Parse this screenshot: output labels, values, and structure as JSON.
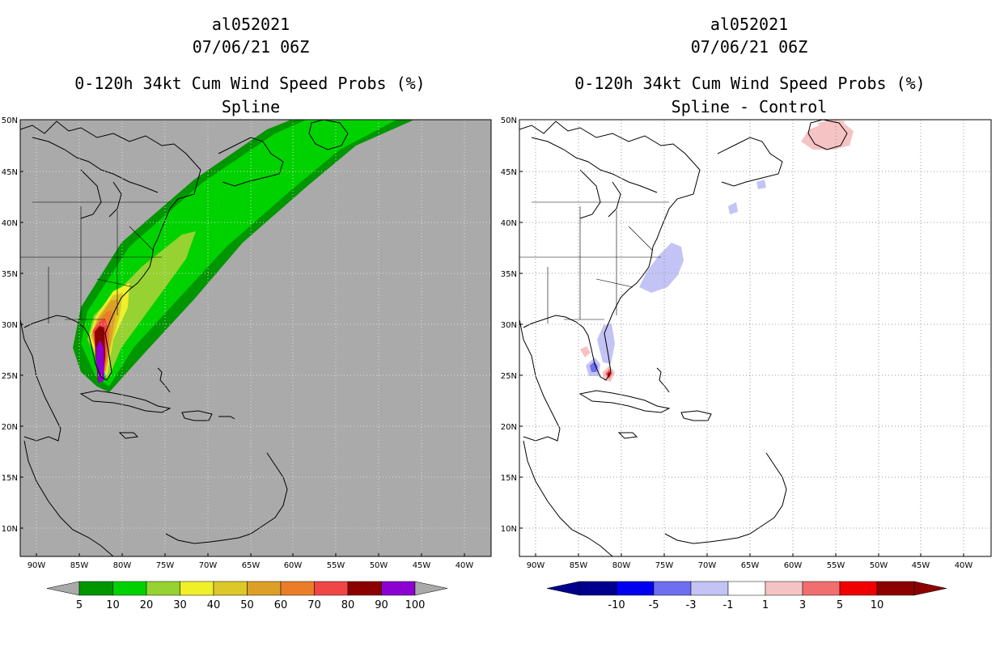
{
  "left_panel": {
    "storm_id": "al052021",
    "datetime": "07/06/21 06Z",
    "product": "0-120h 34kt Cum Wind Speed Probs (%)",
    "subtitle": "Spline",
    "background_color": "#aaaaaa",
    "colorbar_labels": [
      "5",
      "10",
      "20",
      "30",
      "40",
      "50",
      "60",
      "70",
      "80",
      "90",
      "100"
    ],
    "colorbar_colors": [
      "#009600",
      "#00d200",
      "#96d232",
      "#f0f028",
      "#dcc828",
      "#dca028",
      "#eb7d28",
      "#f04646",
      "#8c0000",
      "#8c00d2"
    ]
  },
  "right_panel": {
    "storm_id": "al052021",
    "datetime": "07/06/21 06Z",
    "product": "0-120h 34kt Cum Wind Speed Probs (%)",
    "subtitle": "Spline - Control",
    "background_color": "#ffffff",
    "colorbar_labels": [
      "-10",
      "-5",
      "-3",
      "-1",
      "1",
      "3",
      "5",
      "10"
    ],
    "colorbar_colors": [
      "#00008c",
      "#0000f0",
      "#6e6ef0",
      "#c3c3f5",
      "#ffffff",
      "#f5c3c3",
      "#f06e6e",
      "#f00000",
      "#8c0000"
    ]
  },
  "map": {
    "lat_labels": [
      "50N",
      "45N",
      "40N",
      "35N",
      "30N",
      "25N",
      "20N",
      "15N",
      "10N"
    ],
    "lon_labels": [
      "90W",
      "85W",
      "80W",
      "75W",
      "70W",
      "65W",
      "60W",
      "55W",
      "50W",
      "45W",
      "40W"
    ],
    "lat_range": [
      7,
      50
    ],
    "lon_range": [
      -92,
      -37
    ]
  }
}
